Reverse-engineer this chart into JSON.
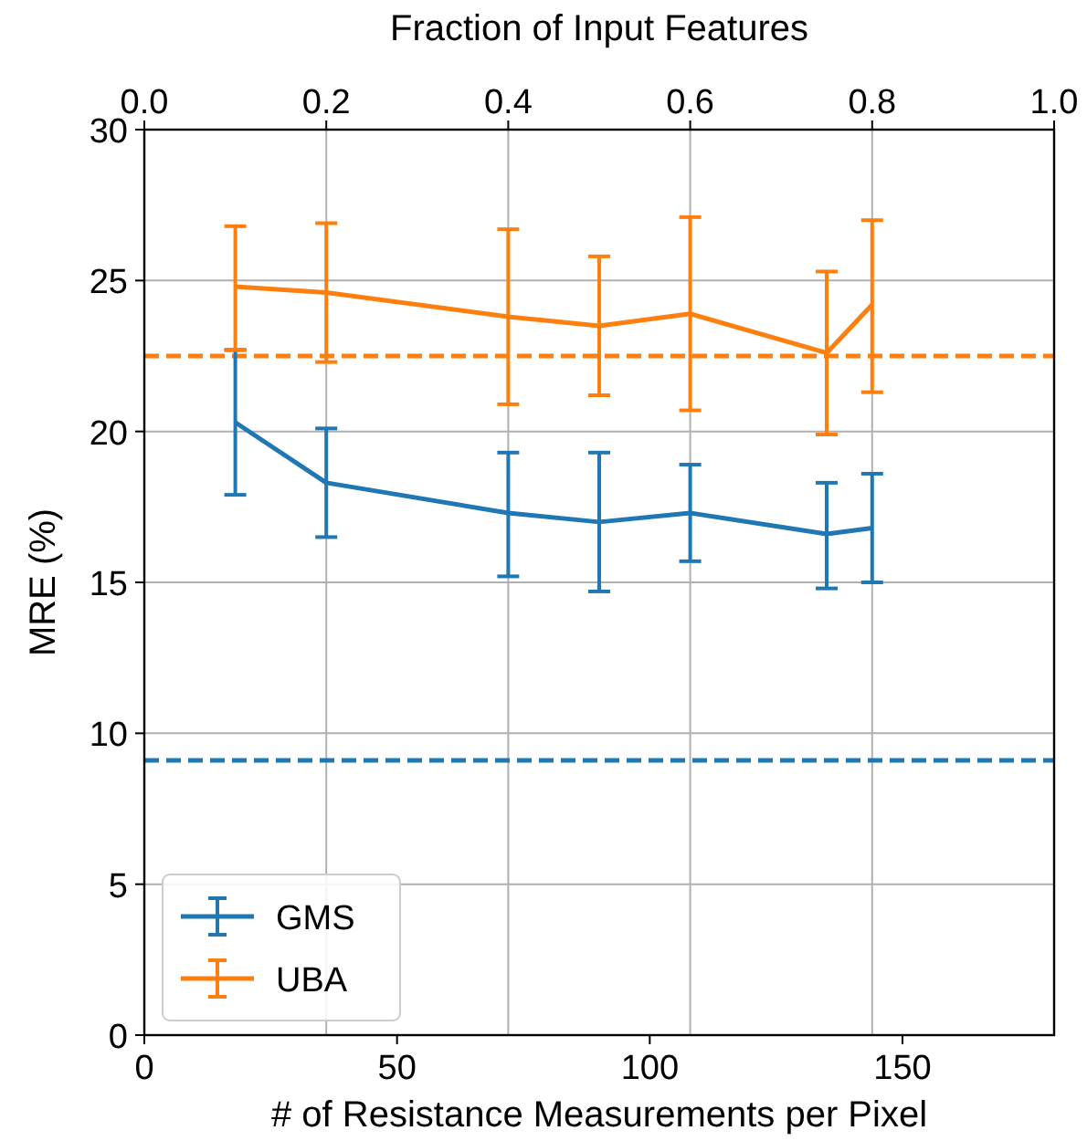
{
  "chart_data": {
    "type": "line",
    "xlabel": "# of Resistance Measurements per Pixel",
    "x2label": "Fraction of Input Features",
    "ylabel": "MRE (%)",
    "x": [
      18,
      36,
      72,
      90,
      108,
      135,
      144
    ],
    "xlim": [
      0,
      180
    ],
    "xticks": [
      0,
      50,
      100,
      150
    ],
    "x2lim": [
      0,
      1
    ],
    "x2ticks": [
      {
        "value": 0,
        "label": "0.0"
      },
      {
        "value": 0.2,
        "label": "0.2"
      },
      {
        "value": 0.4,
        "label": "0.4"
      },
      {
        "value": 0.6,
        "label": "0.6"
      },
      {
        "value": 0.8,
        "label": "0.8"
      },
      {
        "value": 1,
        "label": "1.0"
      }
    ],
    "ylim": [
      0,
      30
    ],
    "yticks": [
      0,
      5,
      10,
      15,
      20,
      25,
      30
    ],
    "series": [
      {
        "name": "GMS",
        "color": "#1f77b4",
        "values": [
          20.3,
          18.3,
          17.3,
          17.0,
          17.3,
          16.6,
          16.8
        ],
        "errors": [
          [
            17.9,
            22.7
          ],
          [
            16.5,
            20.1
          ],
          [
            15.2,
            19.3
          ],
          [
            14.7,
            19.3
          ],
          [
            15.7,
            18.9
          ],
          [
            14.8,
            18.3
          ],
          [
            15.0,
            18.6
          ]
        ]
      },
      {
        "name": "UBA",
        "color": "#ff7f0e",
        "values": [
          24.8,
          24.6,
          23.8,
          23.5,
          23.9,
          22.6,
          24.2
        ],
        "errors": [
          [
            22.7,
            26.8
          ],
          [
            22.3,
            26.9
          ],
          [
            20.9,
            26.7
          ],
          [
            21.2,
            25.8
          ],
          [
            20.7,
            27.1
          ],
          [
            19.9,
            25.3
          ],
          [
            21.3,
            27.0
          ]
        ]
      }
    ],
    "ref_lines": [
      {
        "axis": "y",
        "value": 9.1,
        "color": "#1f77b4",
        "line_style": "dashed"
      },
      {
        "axis": "y",
        "value": 22.5,
        "color": "#ff7f0e",
        "line_style": "dashed"
      }
    ],
    "grid": true,
    "legend": "bottom left",
    "line_style": "solid",
    "marker": "none"
  }
}
